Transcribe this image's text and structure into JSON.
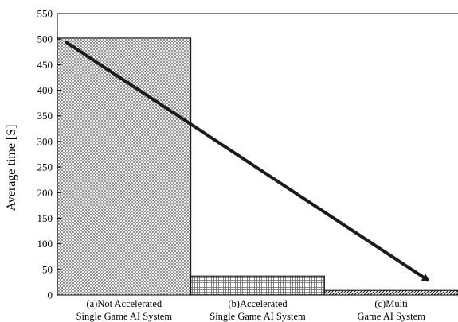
{
  "chart_data": {
    "type": "bar",
    "title": "",
    "xlabel": "",
    "ylabel": "Average time [S]",
    "ylim": [
      0,
      550
    ],
    "yticks": [
      0,
      50,
      100,
      150,
      200,
      250,
      300,
      350,
      400,
      450,
      500,
      550
    ],
    "grid": false,
    "categories": [
      [
        "(a)Not Accelerated",
        "Single Game AI System"
      ],
      [
        "(b)Accelerated",
        "Single Game AI System"
      ],
      [
        "(c)Multi",
        "Game AI System"
      ]
    ],
    "values": [
      502,
      37,
      9
    ],
    "bar_patterns": [
      "crosshatch-fine",
      "vertical-lines",
      "diagonal-lines"
    ],
    "trend_arrow": {
      "from": {
        "category_index": 0,
        "y": 495
      },
      "to": {
        "category_index": 2,
        "y": 28
      }
    },
    "colors": {
      "bar_stroke": "#000000",
      "pattern_ink": "#555555",
      "arrow": "#1a1a1a"
    }
  }
}
